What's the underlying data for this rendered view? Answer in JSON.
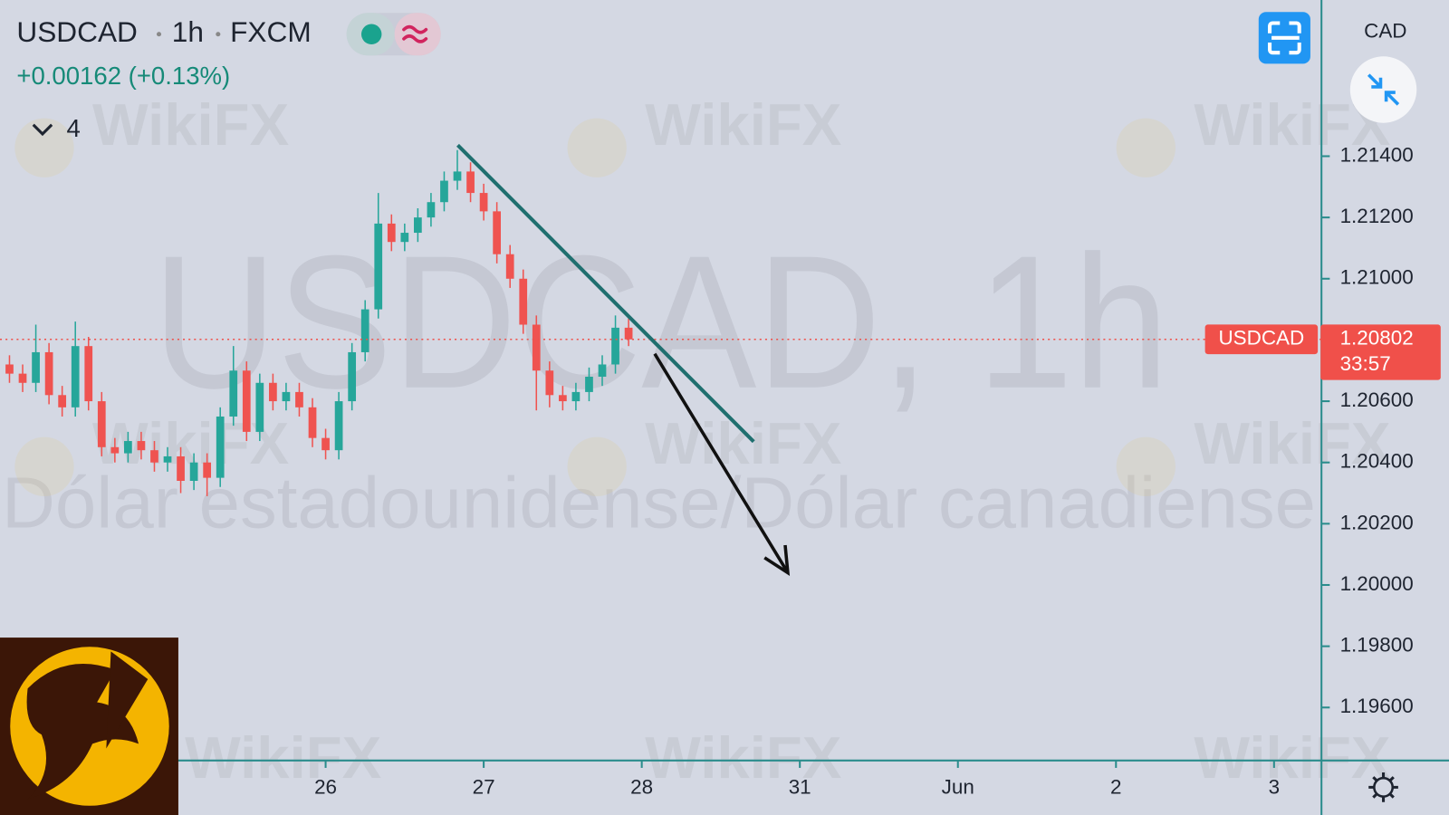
{
  "chart_data": {
    "type": "candlestick",
    "symbol": "USDCAD",
    "interval": "1h",
    "exchange": "FXCM",
    "change": "+0.00162 (+0.13%)",
    "indicator_count": "4",
    "watermark_title": "USDCAD, 1h",
    "watermark_subtitle": "Dólar estadounidense/Dólar canadiense",
    "watermark_brand": "WikiFX",
    "currency": "CAD",
    "up_color": "#26a69a",
    "down_color": "#ef5350",
    "last_price": {
      "label": "USDCAD",
      "value": 1.20802,
      "countdown": "33:57",
      "color": "#f0504a"
    },
    "xlim": [
      -2.06,
      6.3
    ],
    "ylim": [
      1.1943,
      1.2191
    ],
    "xticks": [
      {
        "value": 0,
        "label": "26"
      },
      {
        "value": 1,
        "label": "27"
      },
      {
        "value": 2,
        "label": "28"
      },
      {
        "value": 3,
        "label": "31"
      },
      {
        "value": 4,
        "label": "Jun"
      },
      {
        "value": 5,
        "label": "2"
      },
      {
        "value": 6,
        "label": "3"
      }
    ],
    "yticks": [
      {
        "value": 1.214,
        "label": "1.21400"
      },
      {
        "value": 1.212,
        "label": "1.21200"
      },
      {
        "value": 1.21,
        "label": "1.21000"
      },
      {
        "value": 1.206,
        "label": "1.20600"
      },
      {
        "value": 1.204,
        "label": "1.20400"
      },
      {
        "value": 1.202,
        "label": "1.20200"
      },
      {
        "value": 1.2,
        "label": "1.20000"
      },
      {
        "value": 1.198,
        "label": "1.19800"
      },
      {
        "value": 1.196,
        "label": "1.19600"
      }
    ],
    "x": [
      -2,
      -1.9167,
      -1.8333,
      -1.75,
      -1.6667,
      -1.5833,
      -1.5,
      -1.4167,
      -1.3333,
      -1.25,
      -1.1667,
      -1.0833,
      -1,
      -0.9167,
      -0.8333,
      -0.75,
      -0.6667,
      -0.5833,
      -0.5,
      -0.4167,
      -0.3333,
      -0.25,
      -0.1667,
      -0.0833,
      0,
      0.0833,
      0.1667,
      0.25,
      0.3333,
      0.4167,
      0.5,
      0.5833,
      0.6667,
      0.75,
      0.8333,
      0.9167,
      1,
      1.0833,
      1.1667,
      1.25,
      1.3333,
      1.4167,
      1.5,
      1.5833,
      1.6667,
      1.75,
      1.8333,
      1.9167
    ],
    "open": [
      1.2072,
      1.2069,
      1.2066,
      1.2076,
      1.2062,
      1.2058,
      1.2078,
      1.206,
      1.2045,
      1.2043,
      1.2047,
      1.2044,
      1.204,
      1.2042,
      1.2034,
      1.204,
      1.2035,
      1.2055,
      1.207,
      1.205,
      1.2066,
      1.206,
      1.2063,
      1.2058,
      1.2048,
      1.2044,
      1.206,
      1.2076,
      1.209,
      1.2118,
      1.2112,
      1.2115,
      1.212,
      1.2125,
      1.2132,
      1.2135,
      1.2128,
      1.2122,
      1.2108,
      1.21,
      1.2085,
      1.207,
      1.2062,
      1.206,
      1.2063,
      1.2068,
      1.2072,
      1.2084
    ],
    "high": [
      1.2075,
      1.2072,
      1.2085,
      1.2079,
      1.2065,
      1.2086,
      1.2081,
      1.2063,
      1.2048,
      1.205,
      1.205,
      1.2047,
      1.2045,
      1.2045,
      1.2043,
      1.2043,
      1.2058,
      1.2078,
      1.2073,
      1.2069,
      1.2069,
      1.2066,
      1.2066,
      1.2061,
      1.2051,
      1.2063,
      1.2079,
      1.2093,
      1.2128,
      1.2121,
      1.2118,
      1.2123,
      1.2128,
      1.2135,
      1.2142,
      1.2138,
      1.2131,
      1.2125,
      1.2111,
      1.2103,
      1.2088,
      1.2073,
      1.2065,
      1.2066,
      1.2071,
      1.2075,
      1.2088,
      1.2087
    ],
    "low": [
      1.2066,
      1.2063,
      1.2063,
      1.2059,
      1.2055,
      1.2055,
      1.2057,
      1.2042,
      1.204,
      1.204,
      1.2041,
      1.2037,
      1.2037,
      1.203,
      1.2031,
      1.2029,
      1.2032,
      1.2052,
      1.2047,
      1.2047,
      1.2057,
      1.2057,
      1.2055,
      1.2045,
      1.2041,
      1.2041,
      1.2057,
      1.2073,
      1.2087,
      1.2109,
      1.2109,
      1.2112,
      1.2117,
      1.2122,
      1.2129,
      1.2125,
      1.2119,
      1.2105,
      1.2097,
      1.2082,
      1.2057,
      1.2058,
      1.2057,
      1.2057,
      1.206,
      1.2065,
      1.2069,
      1.2078
    ],
    "close": [
      1.2069,
      1.2066,
      1.2076,
      1.2062,
      1.2058,
      1.2078,
      1.206,
      1.2045,
      1.2043,
      1.2047,
      1.2044,
      1.204,
      1.2042,
      1.2034,
      1.204,
      1.2035,
      1.2055,
      1.207,
      1.205,
      1.2066,
      1.206,
      1.2063,
      1.2058,
      1.2048,
      1.2044,
      1.206,
      1.2076,
      1.209,
      1.2118,
      1.2112,
      1.2115,
      1.212,
      1.2125,
      1.2132,
      1.2135,
      1.2128,
      1.2122,
      1.2108,
      1.21,
      1.2085,
      1.207,
      1.2062,
      1.206,
      1.2063,
      1.2068,
      1.2072,
      1.2084,
      1.20802
    ],
    "trendline": {
      "x": [
        0.836,
        2.708
      ],
      "y": [
        1.21436,
        1.20468
      ],
      "color": "#1f6f6f"
    },
    "arrow": {
      "x": [
        2.082,
        2.924
      ],
      "y": [
        1.20755,
        1.2004
      ],
      "color": "#111111"
    }
  }
}
